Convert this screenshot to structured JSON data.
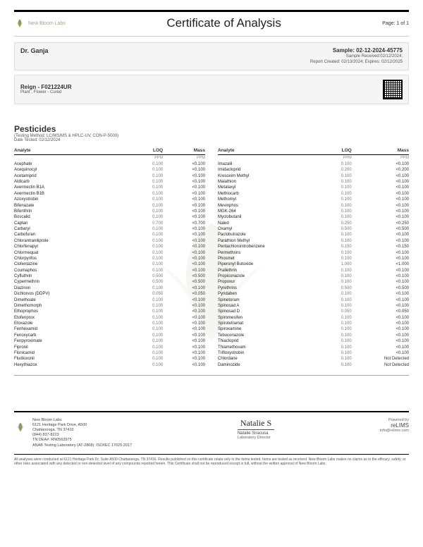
{
  "header": {
    "lab_name": "New Bloom Labs",
    "title": "Certificate of Analysis",
    "page": "Page: 1 of 1"
  },
  "client": {
    "name": "Dr. Ganja"
  },
  "sample": {
    "id_label": "Sample: 02-12-2024-45775",
    "received": "Sample Received:02/12/2024;",
    "report": "Report Created: 02/13/2024; Expires: 02/12/2025"
  },
  "product": {
    "name": "Reign - F021224UR",
    "type": "Plant , Flower - Cured"
  },
  "section": {
    "title": "Pesticides",
    "method": "(Testing Method: LC/MS/MS & HPLC-UV, CON-P-5000)",
    "date": "Date Tested: 02/12/2024"
  },
  "columns": {
    "analyte": "Analyte",
    "loq": "LOQ",
    "mass": "Mass",
    "loq_unit": "PPM",
    "mass_unit": "PPM"
  },
  "left_rows": [
    [
      "Acephate",
      "0.100",
      "<0.100"
    ],
    [
      "Acequinocyl",
      "0.100",
      "<0.100"
    ],
    [
      "Acetamiprid",
      "0.100",
      "<0.100"
    ],
    [
      "Aldicarb",
      "0.100",
      "<0.100"
    ],
    [
      "Avermectin B1A",
      "0.100",
      "<0.100"
    ],
    [
      "Avermectin B1B",
      "0.100",
      "<0.100"
    ],
    [
      "Azoxystrobin",
      "0.100",
      "<0.100"
    ],
    [
      "Bifenazate",
      "0.100",
      "<0.100"
    ],
    [
      "Bifenthrin",
      "0.100",
      "<0.100"
    ],
    [
      "Boscalid",
      "0.100",
      "<0.100"
    ],
    [
      "Captan",
      "0.700",
      "<0.700"
    ],
    [
      "Carbaryl",
      "0.100",
      "<0.100"
    ],
    [
      "Carbofuran",
      "0.100",
      "<0.100"
    ],
    [
      "Chlorantraniliprole",
      "0.100",
      "<0.100"
    ],
    [
      "Chlorfenapyr",
      "0.100",
      "<0.100"
    ],
    [
      "Chlormequat",
      "0.100",
      "<0.100"
    ],
    [
      "Chlorpyrifos",
      "0.100",
      "<0.100"
    ],
    [
      "Clofentazine",
      "0.100",
      "<0.100"
    ],
    [
      "Coumaphos",
      "0.100",
      "<0.100"
    ],
    [
      "Cyfluthrin",
      "0.500",
      "<0.500"
    ],
    [
      "Cypermethrin",
      "0.500",
      "<0.500"
    ],
    [
      "Diazinon",
      "0.100",
      "<0.100"
    ],
    [
      "Dichlorvos (DDPV)",
      "0.050",
      "<0.050"
    ],
    [
      "Dimethoate",
      "0.100",
      "<0.100"
    ],
    [
      "Dimethomorph",
      "0.100",
      "<0.100"
    ],
    [
      "Ethoprophos",
      "0.100",
      "<0.100"
    ],
    [
      "Etofenprox",
      "0.100",
      "<0.100"
    ],
    [
      "Etoxazole",
      "0.100",
      "<0.100"
    ],
    [
      "Fenhexamid",
      "0.100",
      "<0.100"
    ],
    [
      "Fenoxycarb",
      "0.100",
      "<0.100"
    ],
    [
      "Fenpyroximate",
      "0.100",
      "<0.100"
    ],
    [
      "Fipronil",
      "0.100",
      "<0.100"
    ],
    [
      "Flonicamid",
      "0.100",
      "<0.100"
    ],
    [
      "Fludioxonil",
      "0.100",
      "<0.100"
    ],
    [
      "Hexythiazox",
      "0.100",
      "<0.100"
    ]
  ],
  "right_rows": [
    [
      "Imazalil",
      "0.100",
      "<0.100"
    ],
    [
      "Imidacloprid",
      "0.200",
      "<0.200"
    ],
    [
      "Kresoxim Methyl",
      "0.100",
      "<0.100"
    ],
    [
      "Malathion",
      "0.100",
      "<0.100"
    ],
    [
      "Metalaxyl",
      "0.100",
      "<0.100"
    ],
    [
      "Methiocarb",
      "0.100",
      "<0.100"
    ],
    [
      "Methomyl",
      "0.100",
      "<0.100"
    ],
    [
      "Mevinphos",
      "0.100",
      "<0.100"
    ],
    [
      "MGK-264",
      "0.100",
      "<0.100"
    ],
    [
      "Myclobutanil",
      "0.100",
      "<0.100"
    ],
    [
      "Naled",
      "0.250",
      "<0.250"
    ],
    [
      "Oxamyl",
      "0.500",
      "<0.500"
    ],
    [
      "Paclobutrazole",
      "0.100",
      "<0.100"
    ],
    [
      "Parathion Methyl",
      "0.100",
      "<0.100"
    ],
    [
      "Pentachloronitrobenzene",
      "0.150",
      "<0.150"
    ],
    [
      "Permethrins",
      "0.100",
      "<0.100"
    ],
    [
      "Phosmet",
      "0.100",
      "<0.100"
    ],
    [
      "Piperonyl Butoxide",
      "1.000",
      "<1.000"
    ],
    [
      "Prallethrin",
      "0.100",
      "<0.100"
    ],
    [
      "Propiconazole",
      "0.100",
      "<0.100"
    ],
    [
      "Propoxur",
      "0.100",
      "<0.100"
    ],
    [
      "Pyrethrins",
      "0.500",
      "<0.500"
    ],
    [
      "Pyridaben",
      "0.100",
      "<0.100"
    ],
    [
      "Spinetoram",
      "0.100",
      "<0.100"
    ],
    [
      "Spinosad A",
      "0.100",
      "<0.100"
    ],
    [
      "Spinosad D",
      "0.050",
      "<0.050"
    ],
    [
      "Spiromesifen",
      "0.100",
      "<0.100"
    ],
    [
      "Spirotetramat",
      "0.100",
      "<0.100"
    ],
    [
      "Spiroxamine",
      "0.100",
      "<0.100"
    ],
    [
      "Tebuconazole",
      "0.100",
      "<0.100"
    ],
    [
      "Thiacloprid",
      "0.100",
      "<0.100"
    ],
    [
      "Thiamethoxam",
      "0.100",
      "<0.100"
    ],
    [
      "Trifloxystrobin",
      "0.100",
      "<0.100"
    ],
    [
      "Chlordane",
      "0.100",
      "Not Detected"
    ],
    [
      "Daminozide",
      "0.100",
      "Not Detected"
    ]
  ],
  "footer": {
    "addr": [
      "New Bloom Labs",
      "6121 Heritage Park Drive, A500",
      "Chattanooga, TN 37416",
      "(844) 837-8223",
      "TN DEA#: RN0563975",
      "ANAB Testing Laboratory (AT-2868): ISO/IEC 17025:2017"
    ],
    "sig_name": "Natalie Siracusa",
    "sig_role": "Laboratory Director",
    "powered": "Powered by",
    "relims": "reLIMS",
    "link": "info@relims.com"
  },
  "disclaimer": "All analyses were conducted at 6121 Heritage Park Dr, Suite A500 Chattanooga, TN 37416. Results published on this certificate relate only to the items tested. Items are tested as received. New Bloom Labs makes no claims as to the efficacy, safety, or other risks associated with any detected or non-detected level of any compounds reported herein. This Certificate shall not be reproduced except in full, without the written approval of New Bloom Labs."
}
